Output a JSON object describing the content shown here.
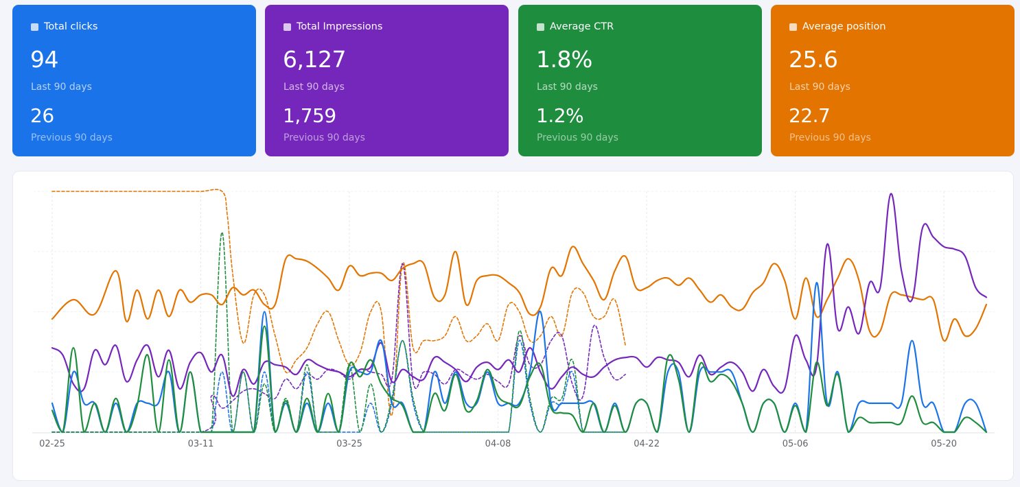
{
  "cards": [
    {
      "title": "Total clicks",
      "value": "94",
      "value_label": "Last 90 days",
      "prev_value": "26",
      "prev_label": "Previous 90 days",
      "color": "#1a73e8"
    },
    {
      "title": "Total Impressions",
      "value": "6,127",
      "value_label": "Last 90 days",
      "prev_value": "1,759",
      "prev_label": "Previous 90 days",
      "color": "#7627bb"
    },
    {
      "title": "Average CTR",
      "value": "1.8%",
      "value_label": "Last 90 days",
      "prev_value": "1.2%",
      "prev_label": "Previous 90 days",
      "color": "#1e8e3e"
    },
    {
      "title": "Average position",
      "value": "25.6",
      "value_label": "Last 90 days",
      "prev_value": "22.7",
      "prev_label": "Previous 90 days",
      "color": "#e37400"
    }
  ],
  "chart_data": {
    "type": "line",
    "x_tick_labels": [
      "02-25",
      "03-11",
      "03-25",
      "04-08",
      "04-22",
      "05-06",
      "05-20"
    ],
    "x_tick_days": [
      0,
      14,
      28,
      42,
      56,
      70,
      84
    ],
    "x_range": [
      0,
      88
    ],
    "y_range": [
      0,
      1
    ],
    "grid": true,
    "legend": "none",
    "note_scale": "each metric normalized to 0-1 of its own range",
    "series": [
      {
        "metric": "position",
        "style": "solid",
        "color": "#e37400",
        "x": [
          0,
          2,
          4,
          6,
          7,
          8,
          9,
          10,
          11,
          12,
          13,
          14,
          15,
          16,
          17,
          18,
          19,
          20,
          21,
          22,
          23,
          24,
          25,
          26,
          27,
          28,
          29,
          30,
          31,
          32,
          33,
          34,
          35,
          36,
          37,
          38,
          39,
          40,
          41,
          42,
          43,
          44,
          45,
          46,
          47,
          48,
          49,
          50,
          51,
          52,
          53,
          54,
          55,
          56,
          57,
          58,
          59,
          60,
          61,
          62,
          63,
          64,
          65,
          66,
          67,
          68,
          69,
          70,
          71,
          72,
          73,
          74,
          75,
          76,
          77,
          78,
          79,
          80,
          81,
          82,
          83,
          84,
          85,
          86,
          87,
          88
        ],
        "y": [
          0.47,
          0.55,
          0.49,
          0.67,
          0.46,
          0.59,
          0.47,
          0.59,
          0.48,
          0.59,
          0.54,
          0.57,
          0.57,
          0.53,
          0.6,
          0.57,
          0.59,
          0.53,
          0.53,
          0.72,
          0.72,
          0.71,
          0.68,
          0.64,
          0.59,
          0.69,
          0.65,
          0.66,
          0.66,
          0.63,
          0.68,
          0.7,
          0.7,
          0.56,
          0.57,
          0.75,
          0.53,
          0.63,
          0.65,
          0.65,
          0.62,
          0.58,
          0.49,
          0.52,
          0.68,
          0.65,
          0.77,
          0.7,
          0.63,
          0.55,
          0.67,
          0.73,
          0.6,
          0.6,
          0.63,
          0.64,
          0.61,
          0.64,
          0.59,
          0.54,
          0.57,
          0.52,
          0.51,
          0.58,
          0.62,
          0.7,
          0.63,
          0.47,
          0.64,
          0.48,
          0.55,
          0.64,
          0.72,
          0.63,
          0.42,
          0.42,
          0.57,
          0.57,
          0.56,
          0.55,
          0.55,
          0.38,
          0.47,
          0.4,
          0.43,
          0.53
        ]
      },
      {
        "metric": "impressions",
        "style": "solid",
        "color": "#7627bb",
        "x": [
          0,
          1,
          2,
          3,
          4,
          5,
          6,
          7,
          8,
          9,
          10,
          11,
          12,
          13,
          14,
          15,
          16,
          17,
          18,
          19,
          20,
          21,
          22,
          23,
          24,
          25,
          26,
          27,
          28,
          29,
          30,
          31,
          32,
          33,
          34,
          35,
          36,
          37,
          38,
          39,
          40,
          41,
          42,
          43,
          44,
          45,
          46,
          47,
          48,
          49,
          50,
          51,
          52,
          53,
          54,
          55,
          56,
          57,
          58,
          59,
          60,
          61,
          62,
          63,
          64,
          65,
          66,
          67,
          68,
          69,
          70,
          71,
          72,
          73,
          74,
          75,
          76,
          77,
          78,
          79,
          80,
          81,
          82,
          83,
          84,
          85,
          86,
          87,
          88
        ],
        "y": [
          0.35,
          0.32,
          0.2,
          0.18,
          0.34,
          0.28,
          0.36,
          0.21,
          0.3,
          0.36,
          0.23,
          0.34,
          0.18,
          0.29,
          0.33,
          0.25,
          0.32,
          0.15,
          0.26,
          0.2,
          0.29,
          0.28,
          0.27,
          0.24,
          0.3,
          0.28,
          0.26,
          0.25,
          0.23,
          0.26,
          0.27,
          0.37,
          0.21,
          0.26,
          0.23,
          0.22,
          0.31,
          0.29,
          0.26,
          0.21,
          0.27,
          0.29,
          0.26,
          0.3,
          0.25,
          0.35,
          0.25,
          0.18,
          0.23,
          0.27,
          0.24,
          0.23,
          0.27,
          0.3,
          0.31,
          0.31,
          0.27,
          0.31,
          0.3,
          0.29,
          0.23,
          0.32,
          0.24,
          0.27,
          0.29,
          0.25,
          0.17,
          0.26,
          0.19,
          0.18,
          0.4,
          0.3,
          0.27,
          0.78,
          0.43,
          0.52,
          0.41,
          0.62,
          0.6,
          0.99,
          0.67,
          0.55,
          0.85,
          0.81,
          0.77,
          0.76,
          0.73,
          0.6,
          0.56
        ]
      },
      {
        "metric": "clicks",
        "style": "solid",
        "color": "#1a73e8",
        "x": [
          0,
          1,
          2,
          3,
          4,
          5,
          6,
          7,
          8,
          9,
          10,
          11,
          12,
          13,
          14,
          15,
          16,
          17,
          18,
          19,
          20,
          21,
          22,
          23,
          24,
          25,
          26,
          27,
          28,
          29,
          30,
          31,
          32,
          33,
          34,
          35,
          36,
          37,
          38,
          39,
          40,
          41,
          42,
          43,
          44,
          45,
          46,
          47,
          48,
          49,
          50,
          51,
          52,
          53,
          54,
          55,
          56,
          57,
          58,
          59,
          60,
          61,
          62,
          63,
          64,
          65,
          66,
          67,
          68,
          69,
          70,
          71,
          72,
          73,
          74,
          75,
          76,
          77,
          78,
          79,
          80,
          81,
          82,
          83,
          84,
          85,
          86,
          87,
          88
        ],
        "y": [
          0.12,
          0.0,
          0.25,
          0.12,
          0.12,
          0.0,
          0.12,
          0.0,
          0.12,
          0.12,
          0.12,
          0.25,
          0.0,
          0.25,
          0.0,
          0.0,
          0.0,
          0.0,
          0.0,
          0.0,
          0.5,
          0.0,
          0.12,
          0.0,
          0.12,
          0.0,
          0.12,
          0.0,
          0.25,
          0.25,
          0.25,
          0.38,
          0.12,
          0.12,
          0.0,
          0.0,
          0.25,
          0.12,
          0.25,
          0.12,
          0.12,
          0.25,
          0.12,
          0.12,
          0.12,
          0.25,
          0.5,
          0.12,
          0.12,
          0.12,
          0.12,
          0.12,
          0.0,
          0.12,
          0.0,
          0.12,
          0.12,
          0.0,
          0.25,
          0.25,
          0.0,
          0.25,
          0.25,
          0.25,
          0.25,
          0.12,
          0.0,
          0.12,
          0.12,
          0.0,
          0.12,
          0.0,
          0.62,
          0.12,
          0.25,
          0.0,
          0.12,
          0.12,
          0.12,
          0.12,
          0.12,
          0.38,
          0.12,
          0.12,
          0.0,
          0.0,
          0.12,
          0.12,
          0.0
        ]
      },
      {
        "metric": "ctr",
        "style": "solid",
        "color": "#1e8e3e",
        "x": [
          0,
          1,
          2,
          3,
          4,
          5,
          6,
          7,
          8,
          9,
          10,
          11,
          12,
          13,
          14,
          15,
          16,
          17,
          18,
          19,
          20,
          21,
          22,
          23,
          24,
          25,
          26,
          27,
          28,
          29,
          30,
          31,
          32,
          33,
          34,
          35,
          36,
          37,
          38,
          39,
          40,
          41,
          42,
          43,
          44,
          45,
          46,
          47,
          48,
          49,
          50,
          51,
          52,
          53,
          54,
          55,
          56,
          57,
          58,
          59,
          60,
          61,
          62,
          63,
          64,
          65,
          66,
          67,
          68,
          69,
          70,
          71,
          72,
          73,
          74,
          75,
          76,
          77,
          78,
          79,
          80,
          81,
          82,
          83,
          84,
          85,
          86,
          87,
          88
        ],
        "y": [
          0.09,
          0.0,
          0.35,
          0.0,
          0.12,
          0.0,
          0.14,
          0.0,
          0.11,
          0.32,
          0.0,
          0.3,
          0.0,
          0.25,
          0.0,
          0.0,
          0.0,
          0.0,
          0.0,
          0.0,
          0.44,
          0.0,
          0.13,
          0.0,
          0.14,
          0.0,
          0.16,
          0.0,
          0.28,
          0.23,
          0.3,
          0.2,
          0.14,
          0.11,
          0.0,
          0.0,
          0.16,
          0.09,
          0.24,
          0.09,
          0.13,
          0.26,
          0.15,
          0.12,
          0.11,
          0.23,
          0.28,
          0.1,
          0.08,
          0.07,
          0.0,
          0.12,
          0.0,
          0.11,
          0.0,
          0.12,
          0.12,
          0.0,
          0.31,
          0.22,
          0.0,
          0.28,
          0.21,
          0.24,
          0.21,
          0.12,
          0.0,
          0.12,
          0.12,
          0.0,
          0.11,
          0.0,
          0.29,
          0.11,
          0.24,
          0.0,
          0.06,
          0.04,
          0.04,
          0.04,
          0.04,
          0.15,
          0.04,
          0.04,
          0.0,
          0.0,
          0.06,
          0.04,
          0.0
        ]
      },
      {
        "metric": "position",
        "period": "previous",
        "style": "dashed",
        "color": "#e37400",
        "x": [
          0,
          4,
          8,
          12,
          14,
          16,
          16.5,
          17,
          18,
          19,
          20,
          21,
          22,
          23,
          24,
          25,
          26,
          27,
          28,
          29,
          30,
          31,
          32,
          33,
          34,
          35,
          36,
          37,
          38,
          39,
          40,
          41,
          42,
          43,
          44,
          45,
          46,
          47,
          48,
          49,
          50,
          51,
          52,
          53,
          54
        ],
        "y": [
          1.0,
          1.0,
          1.0,
          1.0,
          1.0,
          1.0,
          0.9,
          0.66,
          0.37,
          0.57,
          0.57,
          0.4,
          0.25,
          0.3,
          0.35,
          0.45,
          0.5,
          0.38,
          0.28,
          0.33,
          0.5,
          0.5,
          0.07,
          0.7,
          0.35,
          0.38,
          0.38,
          0.4,
          0.48,
          0.38,
          0.4,
          0.45,
          0.38,
          0.53,
          0.5,
          0.38,
          0.4,
          0.48,
          0.4,
          0.58,
          0.58,
          0.48,
          0.48,
          0.55,
          0.36
        ]
      },
      {
        "metric": "impressions",
        "period": "previous",
        "style": "dashed",
        "color": "#7627bb",
        "x": [
          0,
          14,
          15,
          16,
          17,
          18,
          19,
          20,
          21,
          22,
          23,
          24,
          25,
          26,
          27,
          28,
          29,
          30,
          31,
          32,
          33,
          34,
          35,
          36,
          37,
          38,
          39,
          40,
          41,
          42,
          43,
          44,
          45,
          46,
          47,
          48,
          49,
          50,
          51,
          52,
          53,
          54
        ],
        "y": [
          0.0,
          0.0,
          0.15,
          0.1,
          0.13,
          0.17,
          0.18,
          0.16,
          0.14,
          0.22,
          0.18,
          0.24,
          0.22,
          0.26,
          0.25,
          0.22,
          0.26,
          0.25,
          0.24,
          0.22,
          0.7,
          0.21,
          0.25,
          0.24,
          0.2,
          0.26,
          0.24,
          0.22,
          0.24,
          0.21,
          0.2,
          0.4,
          0.28,
          0.28,
          0.38,
          0.4,
          0.2,
          0.15,
          0.44,
          0.31,
          0.22,
          0.24
        ]
      },
      {
        "metric": "clicks",
        "period": "previous",
        "style": "dashed",
        "color": "#1a73e8",
        "x": [
          0,
          14,
          15,
          16,
          17,
          18,
          19,
          20,
          21,
          22,
          23,
          24,
          25,
          26,
          27,
          28,
          29,
          30,
          31,
          32,
          33,
          34,
          35,
          36,
          37,
          38,
          39,
          40,
          41,
          42,
          43,
          44,
          45,
          46,
          47,
          48,
          49,
          50,
          51,
          52,
          53,
          54
        ],
        "y": [
          0.0,
          0.0,
          0.0,
          0.25,
          0.0,
          0.25,
          0.0,
          0.25,
          0.0,
          0.12,
          0.0,
          0.25,
          0.0,
          0.0,
          0.0,
          0.0,
          0.0,
          0.12,
          0.0,
          0.12,
          0.38,
          0.12,
          0.0,
          0.0,
          0.0,
          0.0,
          0.0,
          0.0,
          0.0,
          0.0,
          0.0,
          0.38,
          0.12,
          0.0,
          0.12,
          0.12,
          0.25,
          0.0,
          0.0,
          0.0,
          0.0,
          0.0
        ]
      },
      {
        "metric": "ctr",
        "period": "previous",
        "style": "dashed",
        "color": "#1e8e3e",
        "x": [
          0,
          14,
          15,
          16,
          17,
          18,
          19,
          20,
          21,
          22,
          23,
          24,
          25,
          26,
          27,
          28,
          29,
          30,
          31,
          32,
          33,
          34,
          35,
          36,
          37,
          38,
          39,
          40,
          41,
          42,
          43,
          44,
          45,
          46,
          47,
          48,
          49,
          50,
          51,
          52,
          53,
          54
        ],
        "y": [
          0.0,
          0.0,
          0.0,
          0.83,
          0.0,
          0.25,
          0.0,
          0.2,
          0.0,
          0.14,
          0.0,
          0.28,
          0.0,
          0.0,
          0.0,
          0.28,
          0.0,
          0.2,
          0.0,
          0.14,
          0.38,
          0.14,
          0.0,
          0.0,
          0.0,
          0.0,
          0.0,
          0.0,
          0.0,
          0.0,
          0.0,
          0.42,
          0.14,
          0.0,
          0.14,
          0.14,
          0.3,
          0.0,
          0.0,
          0.0,
          0.0,
          0.0
        ]
      }
    ]
  }
}
